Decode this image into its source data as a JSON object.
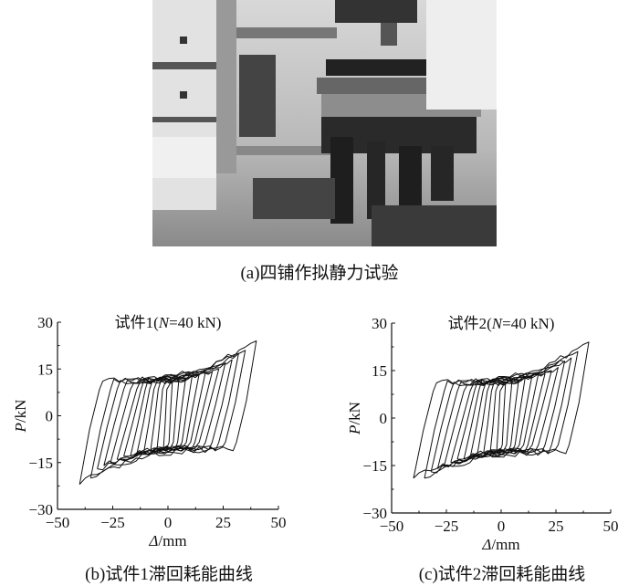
{
  "figure": {
    "caption_a": "(a)四铺作拟静力试验",
    "caption_b": "(b)试件1滞回耗能曲线",
    "caption_c": "(c)试件2滞回耗能曲线"
  },
  "chart_data": [
    {
      "type": "line",
      "title": "试件1(N=40 kN)",
      "title_parts": [
        "试件1(",
        "N",
        "=40 kN)"
      ],
      "xlabel": "Δ/mm",
      "xlabel_parts": [
        "Δ",
        "/mm"
      ],
      "ylabel": "P/kN",
      "ylabel_parts": [
        "P",
        "/kN"
      ],
      "xlim": [
        -50,
        50
      ],
      "ylim": [
        -30,
        30
      ],
      "xticks": [
        "-50",
        "-25",
        "0",
        "25",
        "50"
      ],
      "yticks": [
        "30",
        "15",
        "0",
        "-15",
        "-30"
      ],
      "grid": false,
      "description_of_series": "hysteresis loops, one per displacement amplitude",
      "loops": [
        {
          "amplitude": 2,
          "p_pos": 11,
          "p_neg": -10
        },
        {
          "amplitude": 5,
          "p_pos": 12,
          "p_neg": -11
        },
        {
          "amplitude": 8,
          "p_pos": 12,
          "p_neg": -12
        },
        {
          "amplitude": 11,
          "p_pos": 13,
          "p_neg": -12
        },
        {
          "amplitude": 14,
          "p_pos": 13,
          "p_neg": -12
        },
        {
          "amplitude": 17,
          "p_pos": 14,
          "p_neg": -13
        },
        {
          "amplitude": 20,
          "p_pos": 14,
          "p_neg": -13
        },
        {
          "amplitude": 23,
          "p_pos": 15,
          "p_neg": -14
        },
        {
          "amplitude": 26,
          "p_pos": 17,
          "p_neg": -15
        },
        {
          "amplitude": 29,
          "p_pos": 18,
          "p_neg": -16
        },
        {
          "amplitude": 32,
          "p_pos": 20,
          "p_neg": -17
        },
        {
          "amplitude": 35,
          "p_pos": 21,
          "p_neg": -20
        },
        {
          "amplitude": 40,
          "p_pos": 24,
          "p_neg": -22
        }
      ]
    },
    {
      "type": "line",
      "title": "试件2(N=40 kN)",
      "title_parts": [
        "试件2(",
        "N",
        "=40 kN)"
      ],
      "xlabel": "Δ/mm",
      "xlabel_parts": [
        "Δ",
        "/mm"
      ],
      "ylabel": "P/kN",
      "ylabel_parts": [
        "P",
        "/kN"
      ],
      "xlim": [
        -50,
        50
      ],
      "ylim": [
        -30,
        30
      ],
      "xticks": [
        "-50",
        "-25",
        "0",
        "25",
        "50"
      ],
      "yticks": [
        "30",
        "15",
        "0",
        "-15",
        "-30"
      ],
      "grid": false,
      "description_of_series": "hysteresis loops, one per displacement amplitude",
      "loops": [
        {
          "amplitude": 2,
          "p_pos": 11,
          "p_neg": -10
        },
        {
          "amplitude": 5,
          "p_pos": 12,
          "p_neg": -11
        },
        {
          "amplitude": 8,
          "p_pos": 12,
          "p_neg": -11
        },
        {
          "amplitude": 11,
          "p_pos": 13,
          "p_neg": -12
        },
        {
          "amplitude": 14,
          "p_pos": 13,
          "p_neg": -12
        },
        {
          "amplitude": 17,
          "p_pos": 14,
          "p_neg": -13
        },
        {
          "amplitude": 20,
          "p_pos": 14,
          "p_neg": -13
        },
        {
          "amplitude": 23,
          "p_pos": 15,
          "p_neg": -14
        },
        {
          "amplitude": 26,
          "p_pos": 16,
          "p_neg": -15
        },
        {
          "amplitude": 29,
          "p_pos": 18,
          "p_neg": -16
        },
        {
          "amplitude": 32,
          "p_pos": 19,
          "p_neg": -17
        },
        {
          "amplitude": 35,
          "p_pos": 21,
          "p_neg": -19
        },
        {
          "amplitude": 40,
          "p_pos": 24,
          "p_neg": -19
        }
      ]
    }
  ]
}
